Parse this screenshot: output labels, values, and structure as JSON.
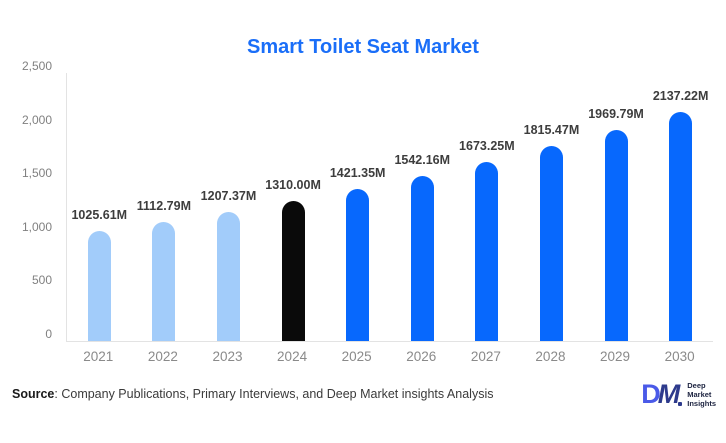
{
  "chart_data": {
    "type": "bar",
    "title": "Smart Toilet Seat Market",
    "categories": [
      "2021",
      "2022",
      "2023",
      "2024",
      "2025",
      "2026",
      "2027",
      "2028",
      "2029",
      "2030"
    ],
    "values": [
      1025.61,
      1112.79,
      1207.37,
      1310.0,
      1421.35,
      1542.16,
      1673.25,
      1815.47,
      1969.79,
      2137.22
    ],
    "value_labels": [
      "1025.61M",
      "1112.79M",
      "1207.37M",
      "1310.00M",
      "1421.35M",
      "1542.16M",
      "1673.25M",
      "1815.47M",
      "1969.79M",
      "2137.22M"
    ],
    "bar_colors": [
      "#a2ccfa",
      "#a2ccfa",
      "#a2ccfa",
      "#0a0a0a",
      "#0768fd",
      "#0768fd",
      "#0768fd",
      "#0768fd",
      "#0768fd",
      "#0768fd"
    ],
    "xlabel": "",
    "ylabel": "",
    "ylim": [
      0,
      2500
    ],
    "yticks": [
      {
        "value": 0,
        "label": "0"
      },
      {
        "value": 500,
        "label": "500"
      },
      {
        "value": 1000,
        "label": "1,000"
      },
      {
        "value": 1500,
        "label": "1,500"
      },
      {
        "value": 2000,
        "label": "2,000"
      },
      {
        "value": 2500,
        "label": "2,500"
      }
    ],
    "grid": false,
    "legend": "none"
  },
  "colors": {
    "title": "#1a6ef8",
    "bar_light_blue": "#a2ccfa",
    "bar_black": "#0a0a0a",
    "bar_blue": "#0768fd",
    "axis_text": "#808080",
    "value_label_text": "#3d3d3d",
    "axis_line": "#e3e3e3"
  },
  "footer": {
    "source_label": "Source",
    "source_rest": ": Company Publications, Primary Interviews, and Deep Market insights Analysis"
  },
  "logo": {
    "letter_d": "D",
    "letter_m": "M",
    "text_lines": [
      "Deep",
      "Market",
      "Insights"
    ]
  }
}
